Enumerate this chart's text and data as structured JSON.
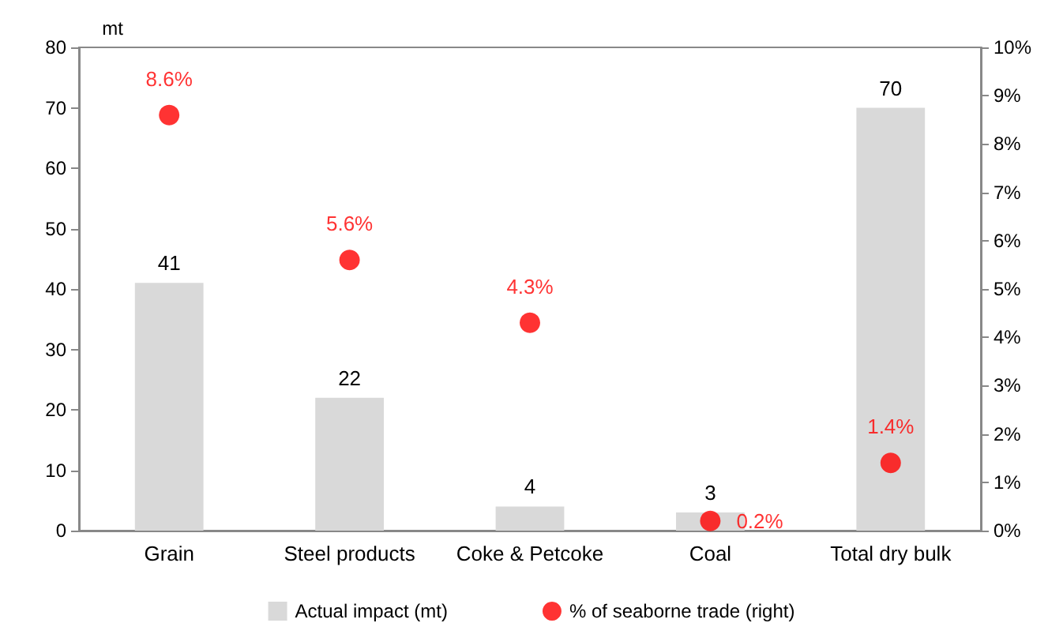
{
  "chart_data": {
    "type": "bar",
    "ylabel": "mt",
    "categories": [
      "Grain",
      "Steel products",
      "Coke & Petcoke",
      "Coal",
      "Total dry bulk"
    ],
    "series": [
      {
        "name": "Actual impact (mt)",
        "color": "#d9d9d9",
        "values": [
          41,
          22,
          4,
          3,
          70
        ],
        "value_labels": [
          "41",
          "22",
          "4",
          "3",
          "70"
        ]
      },
      {
        "name": "% of seaborne trade (right)",
        "type": "scatter",
        "axis": "y2",
        "color": "#ff0000",
        "x": [
          "Grain",
          "Steel products",
          "Coke & Petcoke",
          "Coal",
          "Total dry bulk"
        ],
        "values": [
          8.6,
          5.6,
          4.3,
          0.2,
          1.4
        ],
        "value_labels": [
          "8.6%",
          "5.6%",
          "4.3%",
          "0.2%",
          "1.4%"
        ]
      }
    ],
    "ylim": [
      0,
      80
    ],
    "yticks": [
      0,
      10,
      20,
      30,
      40,
      50,
      60,
      70,
      80
    ],
    "y2lim": [
      0,
      10
    ],
    "y2ticks": [
      {
        "value": 0,
        "label": "0%"
      },
      {
        "value": 1,
        "label": "1%"
      },
      {
        "value": 2,
        "label": "2%"
      },
      {
        "value": 3,
        "label": "3%"
      },
      {
        "value": 4,
        "label": "4%"
      },
      {
        "value": 5,
        "label": "5%"
      },
      {
        "value": 6,
        "label": "6%"
      },
      {
        "value": 7,
        "label": "7%"
      },
      {
        "value": 8,
        "label": "8%"
      },
      {
        "value": 9,
        "label": "9%"
      },
      {
        "value": 10,
        "label": "10%"
      }
    ],
    "grid": false,
    "legend": "bottom",
    "marker": "circle"
  }
}
